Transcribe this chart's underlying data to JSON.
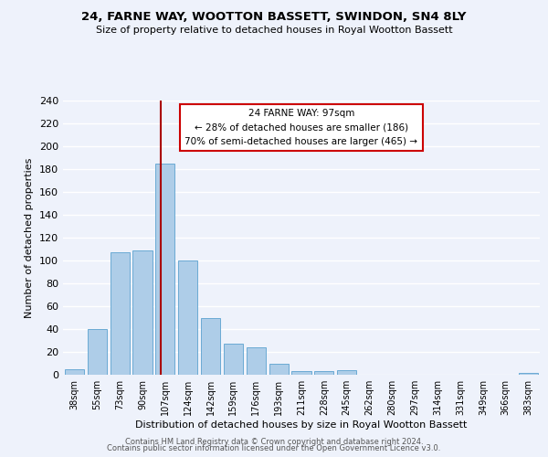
{
  "title": "24, FARNE WAY, WOOTTON BASSETT, SWINDON, SN4 8LY",
  "subtitle": "Size of property relative to detached houses in Royal Wootton Bassett",
  "xlabel": "Distribution of detached houses by size in Royal Wootton Bassett",
  "ylabel": "Number of detached properties",
  "categories": [
    "38sqm",
    "55sqm",
    "73sqm",
    "90sqm",
    "107sqm",
    "124sqm",
    "142sqm",
    "159sqm",
    "176sqm",
    "193sqm",
    "211sqm",
    "228sqm",
    "245sqm",
    "262sqm",
    "280sqm",
    "297sqm",
    "314sqm",
    "331sqm",
    "349sqm",
    "366sqm",
    "383sqm"
  ],
  "values": [
    5,
    40,
    107,
    109,
    185,
    100,
    50,
    27,
    24,
    10,
    3,
    3,
    4,
    0,
    0,
    0,
    0,
    0,
    0,
    0,
    2
  ],
  "bar_color": "#aecde8",
  "bar_edge_color": "#6aaad4",
  "vline_color": "#aa0000",
  "vline_index": 4,
  "annotation_text_line1": "24 FARNE WAY: 97sqm",
  "annotation_text_line2": "← 28% of detached houses are smaller (186)",
  "annotation_text_line3": "70% of semi-detached houses are larger (465) →",
  "box_edge_color": "#cc0000",
  "ylim": [
    0,
    240
  ],
  "yticks": [
    0,
    20,
    40,
    60,
    80,
    100,
    120,
    140,
    160,
    180,
    200,
    220,
    240
  ],
  "footer1": "Contains HM Land Registry data © Crown copyright and database right 2024.",
  "footer2": "Contains public sector information licensed under the Open Government Licence v3.0.",
  "background_color": "#eef2fb",
  "grid_color": "#ffffff"
}
